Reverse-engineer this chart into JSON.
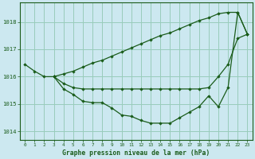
{
  "background_color": "#cce8f0",
  "grid_color": "#99ccbb",
  "line_color": "#1a5c1a",
  "marker_color": "#1a5c1a",
  "xlabel": "Graphe pression niveau de la mer (hPa)",
  "xlabel_color": "#1a5c1a",
  "ylim": [
    1013.7,
    1018.7
  ],
  "xlim": [
    -0.5,
    23.5
  ],
  "yticks": [
    1014,
    1015,
    1016,
    1017,
    1018
  ],
  "xticks": [
    0,
    1,
    2,
    3,
    4,
    5,
    6,
    7,
    8,
    9,
    10,
    11,
    12,
    13,
    14,
    15,
    16,
    17,
    18,
    19,
    20,
    21,
    22,
    23
  ],
  "series": [
    {
      "x": [
        0,
        1,
        2,
        3,
        4,
        5,
        6,
        7,
        8,
        9,
        10,
        11,
        12,
        13,
        14,
        15,
        16,
        17,
        18,
        19,
        20,
        21,
        22,
        23
      ],
      "y": [
        1016.45,
        1016.2,
        1016.0,
        1016.0,
        1016.1,
        1016.2,
        1016.35,
        1016.5,
        1016.6,
        1016.75,
        1016.9,
        1017.05,
        1017.2,
        1017.35,
        1017.5,
        1017.6,
        1017.75,
        1017.9,
        1018.05,
        1018.15,
        1018.3,
        1018.35,
        1018.35,
        1017.55
      ]
    },
    {
      "x": [
        3,
        4,
        5,
        6,
        7,
        8,
        9,
        10,
        11,
        12,
        13,
        14,
        15,
        16,
        17,
        18,
        19,
        20,
        21,
        22,
        23
      ],
      "y": [
        1016.0,
        1015.55,
        1015.35,
        1015.1,
        1015.05,
        1015.05,
        1014.85,
        1014.6,
        1014.55,
        1014.4,
        1014.3,
        1014.3,
        1014.3,
        1014.5,
        1014.7,
        1014.9,
        1015.3,
        1014.9,
        1015.6,
        1018.35,
        1017.55
      ]
    },
    {
      "x": [
        3,
        4,
        5,
        6,
        7,
        8,
        9,
        10,
        11,
        12,
        13,
        14,
        15,
        16,
        17,
        18,
        19,
        20,
        21,
        22,
        23
      ],
      "y": [
        1016.0,
        1015.75,
        1015.6,
        1015.55,
        1015.55,
        1015.55,
        1015.55,
        1015.55,
        1015.55,
        1015.55,
        1015.55,
        1015.55,
        1015.55,
        1015.55,
        1015.55,
        1015.55,
        1015.6,
        1016.0,
        1016.45,
        1017.4,
        1017.55
      ]
    }
  ]
}
